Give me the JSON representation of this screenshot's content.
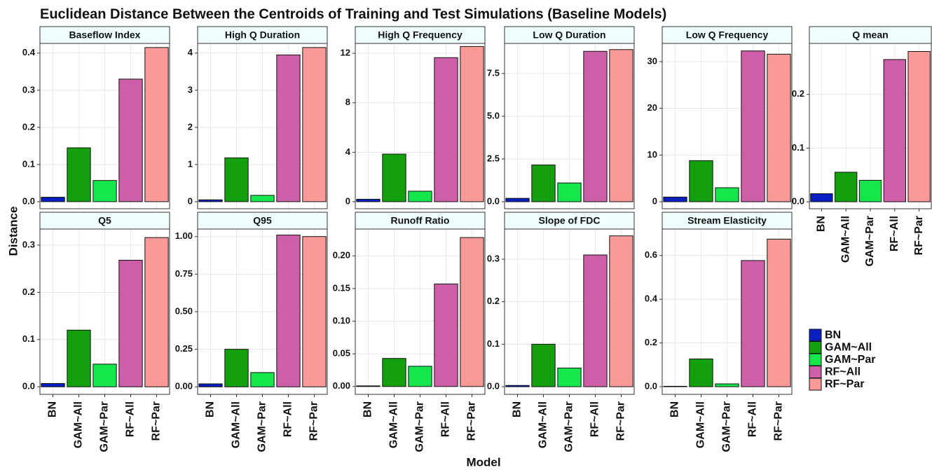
{
  "chart_data": {
    "type": "bar",
    "title": "Euclidean Distance Between the Centroids of Training and Test Simulations (Baseline Models)",
    "xlabel": "Model",
    "ylabel": "Distance",
    "categories": [
      "BN",
      "GAM~All",
      "GAM~Par",
      "RF~All",
      "RF~Par"
    ],
    "colors": [
      "#0a1fbf",
      "#14a00e",
      "#14e64b",
      "#cc5fa8",
      "#fa9a98"
    ],
    "legend": "right",
    "grid": true,
    "panels": [
      {
        "title": "Baseflow Index",
        "values": [
          0.012,
          0.145,
          0.057,
          0.33,
          0.415
        ],
        "ylim": [
          -0.019,
          0.426
        ],
        "yticks": [
          {
            "value": 0,
            "label": "0.0"
          },
          0.1,
          0.2,
          0.3,
          0.4
        ]
      },
      {
        "title": "High Q Duration",
        "values": [
          0.05,
          1.18,
          0.17,
          3.95,
          4.15
        ],
        "ylim": [
          -0.19,
          4.26
        ],
        "yticks": [
          0,
          1,
          2,
          3,
          4
        ]
      },
      {
        "title": "High Q Frequency",
        "values": [
          0.2,
          3.85,
          0.85,
          11.65,
          12.55
        ],
        "ylim": [
          -0.57,
          12.8
        ],
        "yticks": [
          0,
          4,
          8,
          12
        ]
      },
      {
        "title": "Low Q Duration",
        "values": [
          0.2,
          2.15,
          1.1,
          8.8,
          8.9
        ],
        "ylim": [
          -0.41,
          9.26
        ],
        "yticks": [
          {
            "value": 0,
            "label": "0.0"
          },
          2.5,
          {
            "value": 5,
            "label": "5.0"
          },
          7.5
        ]
      },
      {
        "title": "Low Q Frequency",
        "values": [
          1,
          8.8,
          3,
          32.3,
          31.6
        ],
        "ylim": [
          -1.5,
          33.9
        ],
        "yticks": [
          0,
          10,
          20,
          30
        ]
      },
      {
        "title": "Q mean",
        "values": [
          0.015,
          0.055,
          0.04,
          0.265,
          0.28
        ],
        "ylim": [
          -0.013,
          0.295
        ],
        "yticks": [
          {
            "value": 0,
            "label": "0.0"
          },
          0.1,
          0.2
        ]
      },
      {
        "title": "Q5",
        "values": [
          0.007,
          0.12,
          0.048,
          0.268,
          0.316
        ],
        "ylim": [
          -0.016,
          0.334
        ],
        "yticks": [
          {
            "value": 0,
            "label": "0.0"
          },
          0.1,
          0.2,
          0.3
        ]
      },
      {
        "title": "Q95",
        "values": [
          0.02,
          0.25,
          0.095,
          1.01,
          1.0
        ],
        "ylim": [
          -0.05,
          1.05
        ],
        "yticks": [
          {
            "value": 0,
            "label": "0.00"
          },
          0.25,
          {
            "value": 0.5,
            "label": "0.50"
          },
          0.75,
          {
            "value": 1,
            "label": "1.00"
          }
        ]
      },
      {
        "title": "Runoff Ratio",
        "values": [
          0.001,
          0.043,
          0.031,
          0.157,
          0.228
        ],
        "ylim": [
          -0.012,
          0.241
        ],
        "yticks": [
          {
            "value": 0,
            "label": "0.00"
          },
          0.05,
          {
            "value": 0.1,
            "label": "0.10"
          },
          0.15,
          {
            "value": 0.2,
            "label": "0.20"
          }
        ]
      },
      {
        "title": "Slope of FDC",
        "values": [
          0.003,
          0.1,
          0.044,
          0.31,
          0.355
        ],
        "ylim": [
          -0.018,
          0.371
        ],
        "yticks": [
          {
            "value": 0,
            "label": "0.0"
          },
          0.1,
          0.2,
          0.3
        ]
      },
      {
        "title": "Stream Elasticity",
        "values": [
          0.002,
          0.127,
          0.013,
          0.577,
          0.675
        ],
        "ylim": [
          -0.035,
          0.721
        ],
        "yticks": [
          {
            "value": 0,
            "label": "0.0"
          },
          0.2,
          0.4,
          0.6
        ]
      }
    ]
  }
}
